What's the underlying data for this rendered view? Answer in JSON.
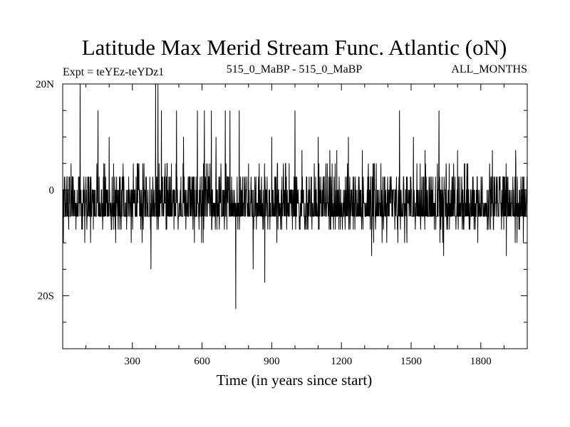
{
  "chart_data": {
    "type": "line",
    "title": "Latitude Max Merid Stream Func. Atlantic (oN)",
    "subtitle_left": "Expt = teYEz-teYDz1",
    "subtitle_center": "515_0_MaBP - 515_0_MaBP",
    "subtitle_right": "ALL_MONTHS",
    "xlabel": "Time (in years since start)",
    "ylabel": "",
    "xlim": [
      0,
      2000
    ],
    "ylim": [
      -30,
      20
    ],
    "x_ticks": [
      300,
      600,
      900,
      1200,
      1500,
      1800
    ],
    "x_tick_labels": [
      "300",
      "600",
      "900",
      "1200",
      "1500",
      "1800"
    ],
    "y_ticks": [
      20,
      0,
      -20
    ],
    "y_tick_labels": [
      "20N",
      "0",
      "20S"
    ],
    "baseline_band": [
      -5,
      2.5
    ],
    "levels": [
      -22.5,
      -17.5,
      -15,
      -12.5,
      -10,
      -7.5,
      -5,
      -2.5,
      0,
      2.5,
      5,
      7.5,
      10,
      12.5,
      15,
      20
    ],
    "spikes": [
      {
        "x": 75,
        "y": 20
      },
      {
        "x": 152,
        "y": 15
      },
      {
        "x": 200,
        "y": 10
      },
      {
        "x": 260,
        "y": 5
      },
      {
        "x": 345,
        "y": 5
      },
      {
        "x": 380,
        "y": -15
      },
      {
        "x": 400,
        "y": 20
      },
      {
        "x": 410,
        "y": 20
      },
      {
        "x": 425,
        "y": 15
      },
      {
        "x": 445,
        "y": -7.5
      },
      {
        "x": 490,
        "y": 15
      },
      {
        "x": 520,
        "y": 10
      },
      {
        "x": 580,
        "y": 15
      },
      {
        "x": 610,
        "y": 15
      },
      {
        "x": 640,
        "y": 15
      },
      {
        "x": 660,
        "y": 10
      },
      {
        "x": 700,
        "y": 15
      },
      {
        "x": 720,
        "y": 15
      },
      {
        "x": 745,
        "y": -22.5
      },
      {
        "x": 760,
        "y": 15
      },
      {
        "x": 800,
        "y": 5
      },
      {
        "x": 820,
        "y": -15
      },
      {
        "x": 870,
        "y": -17.5
      },
      {
        "x": 900,
        "y": 10
      },
      {
        "x": 1000,
        "y": 15
      },
      {
        "x": 1030,
        "y": 7.5
      },
      {
        "x": 1100,
        "y": 10
      },
      {
        "x": 1150,
        "y": 7.5
      },
      {
        "x": 1180,
        "y": 7.5
      },
      {
        "x": 1230,
        "y": 10
      },
      {
        "x": 1290,
        "y": 7.5
      },
      {
        "x": 1330,
        "y": -12.5
      },
      {
        "x": 1350,
        "y": 5
      },
      {
        "x": 1450,
        "y": 15
      },
      {
        "x": 1510,
        "y": 10
      },
      {
        "x": 1560,
        "y": 7.5
      },
      {
        "x": 1620,
        "y": 15
      },
      {
        "x": 1640,
        "y": -12.5
      },
      {
        "x": 1700,
        "y": 7.5
      },
      {
        "x": 1740,
        "y": 5
      },
      {
        "x": 1850,
        "y": 7.5
      },
      {
        "x": 1910,
        "y": -12.5
      },
      {
        "x": 1950,
        "y": 7.5
      }
    ]
  }
}
